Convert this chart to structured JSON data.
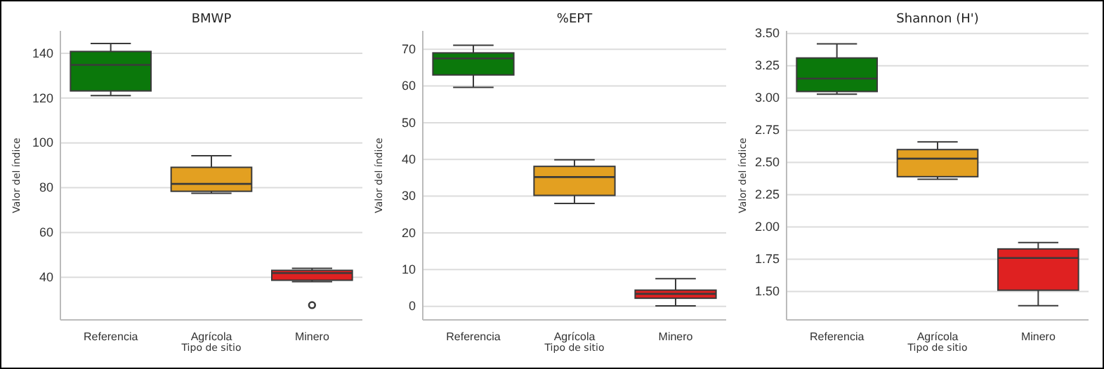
{
  "chart_data": [
    {
      "type": "box",
      "title": "BMWP",
      "xlabel": "Tipo de sitio",
      "ylabel": "Valor del índice",
      "categories": [
        "Referencia",
        "Agrícola",
        "Minero"
      ],
      "colors": [
        "#0b780b",
        "#e3a021",
        "#df2121"
      ],
      "ylim": [
        21,
        150
      ],
      "yticks": [
        40,
        60,
        80,
        100,
        120,
        140
      ],
      "grid": "y",
      "boxes": [
        {
          "low": 121.1,
          "q1": 123.2,
          "median": 134.8,
          "q3": 140.8,
          "high": 144.4
        },
        {
          "low": 77.5,
          "q1": 78.4,
          "median": 81.7,
          "q3": 89.1,
          "high": 94.3
        },
        {
          "low": 38.1,
          "q1": 38.7,
          "median": 41.9,
          "q3": 43.1,
          "high": 44,
          "outliers": [
            27.6
          ]
        }
      ]
    },
    {
      "type": "box",
      "title": "%EPT",
      "xlabel": "Tipo de sitio",
      "ylabel": "Valor del índice",
      "categories": [
        "Referencia",
        "Agrícola",
        "Minero"
      ],
      "colors": [
        "#0b780b",
        "#e3a021",
        "#df2121"
      ],
      "ylim": [
        -3.7,
        75
      ],
      "yticks": [
        0,
        10,
        20,
        30,
        40,
        50,
        60,
        70
      ],
      "grid": "y",
      "boxes": [
        {
          "low": 59.6,
          "q1": 63,
          "median": 67.5,
          "q3": 69,
          "high": 71.1
        },
        {
          "low": 28,
          "q1": 30.2,
          "median": 35.2,
          "q3": 38.1,
          "high": 39.9
        },
        {
          "low": 0.1,
          "q1": 2.2,
          "median": 3.4,
          "q3": 4.4,
          "high": 7.5
        }
      ]
    },
    {
      "type": "box",
      "title": "Shannon (H')",
      "xlabel": "Tipo de sitio",
      "ylabel": "Valor del índice",
      "categories": [
        "Referencia",
        "Agrícola",
        "Minero"
      ],
      "colors": [
        "#0b780b",
        "#e3a021",
        "#df2121"
      ],
      "ylim": [
        1.28,
        3.52
      ],
      "yticks": [
        {
          "value": 1.5,
          "label": "1.50"
        },
        {
          "value": 1.75,
          "label": "1.75"
        },
        {
          "value": 2,
          "label": "2.00"
        },
        {
          "value": 2.25,
          "label": "2.25"
        },
        {
          "value": 2.5,
          "label": "2.50"
        },
        {
          "value": 2.75,
          "label": "2.75"
        },
        {
          "value": 3,
          "label": "3.00"
        },
        {
          "value": 3.25,
          "label": "3.25"
        },
        {
          "value": 3.5,
          "label": "3.50"
        }
      ],
      "grid": "y",
      "boxes": [
        {
          "low": 3.03,
          "q1": 3.05,
          "median": 3.15,
          "q3": 3.31,
          "high": 3.42
        },
        {
          "low": 2.37,
          "q1": 2.39,
          "median": 2.53,
          "q3": 2.6,
          "high": 2.66
        },
        {
          "low": 1.39,
          "q1": 1.51,
          "median": 1.76,
          "q3": 1.83,
          "high": 1.88
        }
      ]
    }
  ]
}
